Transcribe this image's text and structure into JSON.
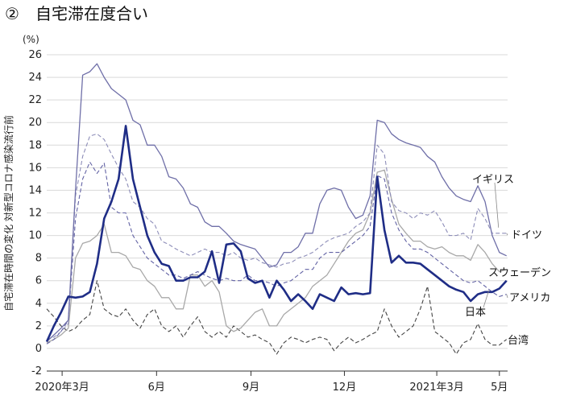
{
  "header": {
    "number": "②",
    "title": "自宅滞在度合い"
  },
  "chart_data": {
    "type": "line",
    "title": "自宅滞在度合い",
    "ylabel": "自宅滞在時間の変化 対新型コロナ感染流行前",
    "yunit": "(%)",
    "ylim": [
      -2,
      26
    ],
    "yticks": [
      -2,
      0,
      2,
      4,
      6,
      8,
      10,
      12,
      14,
      16,
      18,
      20,
      22,
      24,
      26
    ],
    "xlim": [
      "2020-02-15",
      "2021-05-09"
    ],
    "xticks": [
      {
        "date": "2020-03-01",
        "label": "2020年3月"
      },
      {
        "date": "2020-06-01",
        "label": "6月"
      },
      {
        "date": "2020-09-01",
        "label": "9月"
      },
      {
        "date": "2020-12-01",
        "label": "12月"
      },
      {
        "date": "2021-03-01",
        "label": "2021年3月"
      },
      {
        "date": "2021-05-01",
        "label": "5月"
      }
    ],
    "x": [
      "2020-02-15",
      "2020-02-22",
      "2020-02-29",
      "2020-03-07",
      "2020-03-14",
      "2020-03-21",
      "2020-03-28",
      "2020-04-04",
      "2020-04-11",
      "2020-04-18",
      "2020-04-25",
      "2020-05-02",
      "2020-05-09",
      "2020-05-16",
      "2020-05-23",
      "2020-05-30",
      "2020-06-06",
      "2020-06-13",
      "2020-06-20",
      "2020-06-27",
      "2020-07-04",
      "2020-07-11",
      "2020-07-18",
      "2020-07-25",
      "2020-08-01",
      "2020-08-08",
      "2020-08-15",
      "2020-08-22",
      "2020-08-29",
      "2020-09-05",
      "2020-09-12",
      "2020-09-19",
      "2020-09-26",
      "2020-10-03",
      "2020-10-10",
      "2020-10-17",
      "2020-10-24",
      "2020-10-31",
      "2020-11-07",
      "2020-11-14",
      "2020-11-21",
      "2020-11-28",
      "2020-12-05",
      "2020-12-12",
      "2020-12-19",
      "2020-12-26",
      "2021-01-02",
      "2021-01-09",
      "2021-01-16",
      "2021-01-23",
      "2021-01-30",
      "2021-02-06",
      "2021-02-13",
      "2021-02-20",
      "2021-02-27",
      "2021-03-06",
      "2021-03-13",
      "2021-03-20",
      "2021-03-27",
      "2021-04-03",
      "2021-04-10",
      "2021-04-17",
      "2021-04-24",
      "2021-05-01",
      "2021-05-08"
    ],
    "series": [
      {
        "name": "イギリス",
        "color": "#6f6fa8",
        "width": 1.3,
        "dash": "",
        "values": [
          0.6,
          1.2,
          1.8,
          2.5,
          14.0,
          24.2,
          24.5,
          25.2,
          24.0,
          23.0,
          22.5,
          22.0,
          20.2,
          19.8,
          18.0,
          18.0,
          17.0,
          15.2,
          15.0,
          14.2,
          12.8,
          12.5,
          11.2,
          10.8,
          10.8,
          10.2,
          9.5,
          9.2,
          9.0,
          8.8,
          8.0,
          7.2,
          7.4,
          8.5,
          8.5,
          9.0,
          10.2,
          10.2,
          12.8,
          14.0,
          14.2,
          14.0,
          12.5,
          11.5,
          11.8,
          13.5,
          20.2,
          20.0,
          19.0,
          18.5,
          18.2,
          18.0,
          17.8,
          17.0,
          16.5,
          15.2,
          14.2,
          13.5,
          13.2,
          13.0,
          14.4,
          13.0,
          10.0,
          8.5,
          8.2
        ]
      },
      {
        "name": "ドイツ",
        "color": "#8d8db8",
        "width": 1.1,
        "dash": "5,3",
        "values": [
          0.8,
          1.0,
          1.5,
          2.2,
          13.5,
          17.0,
          18.8,
          19.0,
          18.5,
          17.2,
          16.0,
          15.0,
          13.0,
          12.5,
          11.5,
          11.0,
          9.5,
          9.2,
          8.8,
          8.5,
          8.2,
          8.5,
          8.8,
          8.5,
          8.5,
          8.2,
          8.5,
          8.0,
          7.8,
          8.0,
          7.6,
          7.4,
          7.2,
          7.5,
          7.6,
          8.0,
          8.2,
          8.5,
          9.0,
          9.5,
          9.8,
          10.0,
          10.2,
          10.8,
          11.2,
          12.0,
          18.0,
          17.2,
          13.0,
          12.2,
          12.0,
          11.5,
          12.0,
          11.8,
          12.2,
          11.2,
          10.0,
          10.0,
          10.2,
          9.6,
          12.4,
          11.5,
          10.2,
          10.2,
          10.2
        ]
      },
      {
        "name": "スウェーデン",
        "color": "#a8a8a8",
        "width": 1.3,
        "dash": "",
        "values": [
          0.5,
          0.8,
          1.2,
          1.8,
          8.0,
          9.3,
          9.5,
          10.0,
          11.0,
          8.5,
          8.5,
          8.2,
          7.2,
          7.0,
          6.0,
          5.5,
          4.5,
          4.5,
          3.5,
          3.5,
          6.5,
          6.5,
          5.5,
          6.0,
          5.0,
          2.0,
          1.5,
          1.8,
          2.5,
          3.2,
          3.5,
          2.0,
          2.0,
          3.0,
          3.5,
          4.0,
          4.5,
          5.5,
          6.0,
          6.5,
          7.5,
          8.5,
          9.5,
          10.2,
          10.5,
          12.0,
          15.6,
          15.8,
          13.2,
          11.0,
          10.2,
          9.5,
          9.5,
          9.0,
          8.8,
          9.0,
          8.5,
          8.2,
          8.2,
          7.8,
          9.2,
          8.5,
          7.5,
          6.8,
          7.0
        ]
      },
      {
        "name": "アメリカ",
        "color": "#6262a4",
        "width": 1.1,
        "dash": "5,3",
        "values": [
          0.4,
          0.8,
          1.5,
          2.5,
          11.5,
          15.0,
          16.5,
          15.5,
          16.4,
          12.5,
          12.0,
          12.0,
          10.0,
          9.0,
          8.0,
          7.5,
          7.0,
          6.5,
          6.5,
          6.2,
          6.5,
          6.8,
          6.5,
          6.2,
          6.0,
          6.2,
          6.0,
          6.0,
          6.5,
          6.0,
          6.0,
          5.8,
          5.5,
          5.8,
          6.0,
          6.5,
          7.0,
          7.0,
          8.0,
          8.5,
          8.5,
          8.5,
          9.0,
          9.5,
          10.0,
          10.8,
          15.3,
          15.0,
          12.0,
          10.5,
          9.5,
          8.8,
          8.8,
          8.5,
          8.0,
          7.5,
          7.0,
          6.5,
          6.0,
          5.8,
          6.0,
          5.5,
          5.0,
          4.6,
          4.8
        ]
      },
      {
        "name": "日本",
        "color": "#1f2d86",
        "width": 2.6,
        "dash": "",
        "values": [
          0.6,
          2.0,
          3.2,
          4.6,
          4.5,
          4.6,
          5.0,
          7.5,
          11.5,
          13.0,
          15.0,
          19.7,
          15.0,
          12.5,
          10.0,
          8.5,
          7.5,
          7.3,
          6.0,
          6.0,
          6.3,
          6.3,
          6.8,
          8.6,
          5.8,
          9.2,
          9.3,
          8.6,
          6.2,
          5.8,
          6.0,
          4.5,
          6.0,
          5.2,
          4.2,
          4.8,
          4.2,
          3.5,
          4.8,
          4.5,
          4.2,
          5.4,
          4.8,
          4.9,
          4.8,
          4.9,
          15.2,
          10.5,
          7.6,
          8.2,
          7.6,
          7.6,
          7.5,
          7.0,
          6.5,
          6.0,
          5.5,
          5.2,
          5.0,
          4.2,
          4.8,
          5.0,
          5.0,
          5.3,
          6.0
        ]
      },
      {
        "name": "台湾",
        "color": "#444444",
        "width": 1.1,
        "dash": "5,3",
        "values": [
          3.5,
          2.8,
          2.0,
          1.5,
          1.8,
          2.5,
          3.0,
          6.0,
          3.5,
          3.0,
          2.8,
          3.5,
          2.5,
          1.8,
          3.0,
          3.5,
          2.0,
          1.5,
          2.0,
          1.0,
          2.0,
          2.8,
          1.5,
          1.0,
          1.5,
          1.0,
          2.0,
          1.5,
          1.0,
          1.2,
          0.8,
          0.5,
          -0.5,
          0.5,
          1.0,
          0.8,
          0.5,
          0.8,
          1.0,
          0.8,
          -0.2,
          0.5,
          1.0,
          0.5,
          0.8,
          1.2,
          1.5,
          3.5,
          2.0,
          1.0,
          1.5,
          2.0,
          3.5,
          5.5,
          1.5,
          1.0,
          0.5,
          -0.5,
          0.5,
          0.8,
          2.2,
          0.8,
          0.3,
          0.3,
          0.8
        ]
      }
    ],
    "end_labels": [
      {
        "series": "イギリス",
        "text": "イギリス"
      },
      {
        "series": "ドイツ",
        "text": "ドイツ"
      },
      {
        "series": "スウェーデン",
        "text": "スウェーデン"
      },
      {
        "series": "アメリカ",
        "text": "アメリカ"
      },
      {
        "series": "日本",
        "text": "日本"
      },
      {
        "series": "台湾",
        "text": "台湾"
      }
    ],
    "grid": true
  }
}
